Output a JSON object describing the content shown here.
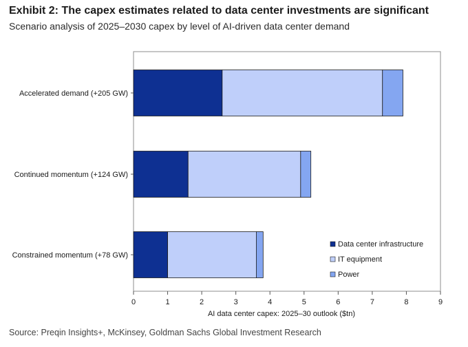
{
  "header": {
    "title": "Exhibit 2: The capex estimates related to data center investments are significant",
    "subtitle": "Scenario analysis of 2025–2030 capex by level of AI-driven data center demand"
  },
  "footer": {
    "source": "Source: Preqin Insights+, McKinsey, Goldman Sachs Global Investment Research"
  },
  "chart_data": {
    "type": "bar",
    "orientation": "horizontal",
    "stacked": true,
    "title": "",
    "xlabel": "AI  data center capex:  2025–30 outlook ($tn)",
    "ylabel": "",
    "xlim": [
      0,
      9
    ],
    "xticks": [
      "0",
      "1",
      "2",
      "3",
      "4",
      "5",
      "6",
      "7",
      "8",
      "9"
    ],
    "grid": false,
    "legend_position": "bottom-right",
    "categories": [
      "Accelerated demand (+205 GW)",
      "Continued momentum (+124 GW)",
      "Constrained momentum (+78 GW)"
    ],
    "series": [
      {
        "name": "Data center infrastructure",
        "color": "#0e3092",
        "values": [
          2.6,
          1.6,
          1.0
        ]
      },
      {
        "name": "IT equipment",
        "color": "#bfcffa",
        "values": [
          4.7,
          3.3,
          2.6
        ]
      },
      {
        "name": "Power",
        "color": "#84a6f1",
        "values": [
          0.6,
          0.3,
          0.2
        ]
      }
    ]
  }
}
